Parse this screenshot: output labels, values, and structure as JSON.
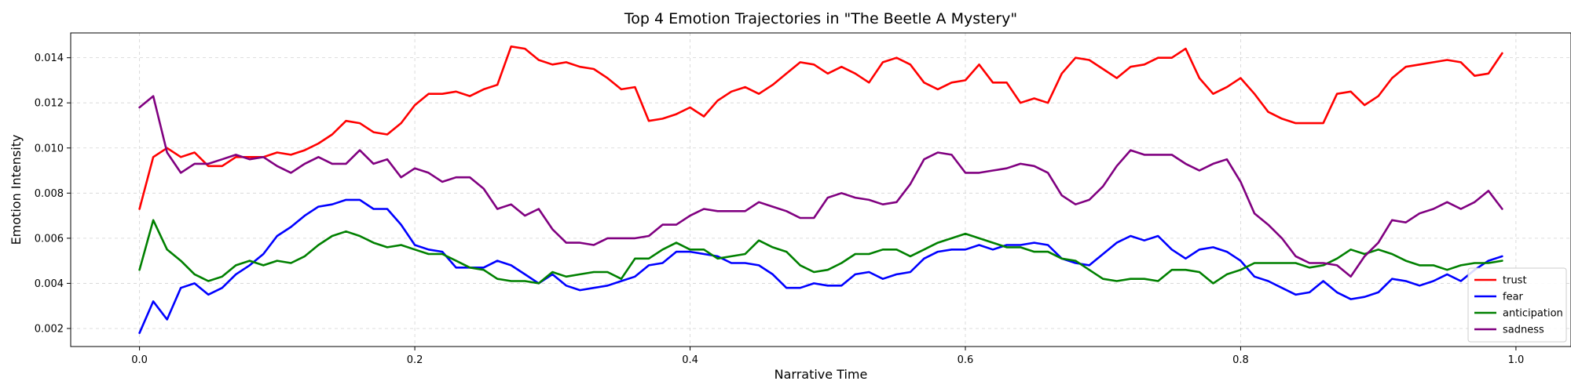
{
  "chart_data": {
    "type": "line",
    "title": "Top 4 Emotion Trajectories in \"The Beetle A Mystery\"",
    "xlabel": "Narrative Time",
    "ylabel": "Emotion Intensity",
    "xlim": [
      -0.05,
      1.04
    ],
    "ylim": [
      0.0012,
      0.0151
    ],
    "xticks": [
      0.0,
      0.2,
      0.4,
      0.6,
      0.8,
      1.0
    ],
    "xtick_labels": [
      "0.0",
      "0.2",
      "0.4",
      "0.6",
      "0.8",
      "1.0"
    ],
    "yticks": [
      0.002,
      0.004,
      0.006,
      0.008,
      0.01,
      0.012,
      0.014
    ],
    "ytick_labels": [
      "0.002",
      "0.004",
      "0.006",
      "0.008",
      "0.010",
      "0.012",
      "0.014"
    ],
    "grid": true,
    "legend_position": "lower-right",
    "x_start": 0.0,
    "x_step": 0.01,
    "series": [
      {
        "name": "trust",
        "color": "#ff0000",
        "values": [
          0.0073,
          0.0096,
          0.01,
          0.0096,
          0.0098,
          0.0092,
          0.0092,
          0.0096,
          0.0096,
          0.0096,
          0.0098,
          0.0097,
          0.0099,
          0.0102,
          0.0106,
          0.0112,
          0.0111,
          0.0107,
          0.0106,
          0.0111,
          0.0119,
          0.0124,
          0.0124,
          0.0125,
          0.0123,
          0.0126,
          0.0128,
          0.0145,
          0.0144,
          0.0139,
          0.0137,
          0.0138,
          0.0136,
          0.0135,
          0.0131,
          0.0126,
          0.0127,
          0.0112,
          0.0113,
          0.0115,
          0.0118,
          0.0114,
          0.0121,
          0.0125,
          0.0127,
          0.0124,
          0.0128,
          0.0133,
          0.0138,
          0.0137,
          0.0133,
          0.0136,
          0.0133,
          0.0129,
          0.0138,
          0.014,
          0.0137,
          0.0129,
          0.0126,
          0.0129,
          0.013,
          0.0137,
          0.0129,
          0.0129,
          0.012,
          0.0122,
          0.012,
          0.0133,
          0.014,
          0.0139,
          0.0135,
          0.0131,
          0.0136,
          0.0137,
          0.014,
          0.014,
          0.0144,
          0.0131,
          0.0124,
          0.0127,
          0.0131,
          0.0124,
          0.0116,
          0.0113,
          0.0111,
          0.0111,
          0.0111,
          0.0124,
          0.0125,
          0.0119,
          0.0123,
          0.0131,
          0.0136,
          0.0137,
          0.0138,
          0.0139,
          0.0138,
          0.0132,
          0.0133,
          0.0142
        ]
      },
      {
        "name": "fear",
        "color": "#0000ff",
        "values": [
          0.0018,
          0.0032,
          0.0024,
          0.0038,
          0.004,
          0.0035,
          0.0038,
          0.0044,
          0.0048,
          0.0053,
          0.0061,
          0.0065,
          0.007,
          0.0074,
          0.0075,
          0.0077,
          0.0077,
          0.0073,
          0.0073,
          0.0066,
          0.0057,
          0.0055,
          0.0054,
          0.0047,
          0.0047,
          0.0047,
          0.005,
          0.0048,
          0.0044,
          0.004,
          0.0044,
          0.0039,
          0.0037,
          0.0038,
          0.0039,
          0.0041,
          0.0043,
          0.0048,
          0.0049,
          0.0054,
          0.0054,
          0.0053,
          0.0052,
          0.0049,
          0.0049,
          0.0048,
          0.0044,
          0.0038,
          0.0038,
          0.004,
          0.0039,
          0.0039,
          0.0044,
          0.0045,
          0.0042,
          0.0044,
          0.0045,
          0.0051,
          0.0054,
          0.0055,
          0.0055,
          0.0057,
          0.0055,
          0.0057,
          0.0057,
          0.0058,
          0.0057,
          0.0051,
          0.0049,
          0.0048,
          0.0053,
          0.0058,
          0.0061,
          0.0059,
          0.0061,
          0.0055,
          0.0051,
          0.0055,
          0.0056,
          0.0054,
          0.005,
          0.0043,
          0.0041,
          0.0038,
          0.0035,
          0.0036,
          0.0041,
          0.0036,
          0.0033,
          0.0034,
          0.0036,
          0.0042,
          0.0041,
          0.0039,
          0.0041,
          0.0044,
          0.0041,
          0.0046,
          0.005,
          0.0052
        ]
      },
      {
        "name": "anticipation",
        "color": "#008000",
        "values": [
          0.0046,
          0.0068,
          0.0055,
          0.005,
          0.0044,
          0.0041,
          0.0043,
          0.0048,
          0.005,
          0.0048,
          0.005,
          0.0049,
          0.0052,
          0.0057,
          0.0061,
          0.0063,
          0.0061,
          0.0058,
          0.0056,
          0.0057,
          0.0055,
          0.0053,
          0.0053,
          0.005,
          0.0047,
          0.0046,
          0.0042,
          0.0041,
          0.0041,
          0.004,
          0.0045,
          0.0043,
          0.0044,
          0.0045,
          0.0045,
          0.0042,
          0.0051,
          0.0051,
          0.0055,
          0.0058,
          0.0055,
          0.0055,
          0.0051,
          0.0052,
          0.0053,
          0.0059,
          0.0056,
          0.0054,
          0.0048,
          0.0045,
          0.0046,
          0.0049,
          0.0053,
          0.0053,
          0.0055,
          0.0055,
          0.0052,
          0.0055,
          0.0058,
          0.006,
          0.0062,
          0.006,
          0.0058,
          0.0056,
          0.0056,
          0.0054,
          0.0054,
          0.0051,
          0.005,
          0.0046,
          0.0042,
          0.0041,
          0.0042,
          0.0042,
          0.0041,
          0.0046,
          0.0046,
          0.0045,
          0.004,
          0.0044,
          0.0046,
          0.0049,
          0.0049,
          0.0049,
          0.0049,
          0.0047,
          0.0048,
          0.0051,
          0.0055,
          0.0053,
          0.0055,
          0.0053,
          0.005,
          0.0048,
          0.0048,
          0.0046,
          0.0048,
          0.0049,
          0.0049,
          0.005
        ]
      },
      {
        "name": "sadness",
        "color": "#800080",
        "values": [
          0.0118,
          0.0123,
          0.0098,
          0.0089,
          0.0093,
          0.0093,
          0.0095,
          0.0097,
          0.0095,
          0.0096,
          0.0092,
          0.0089,
          0.0093,
          0.0096,
          0.0093,
          0.0093,
          0.0099,
          0.0093,
          0.0095,
          0.0087,
          0.0091,
          0.0089,
          0.0085,
          0.0087,
          0.0087,
          0.0082,
          0.0073,
          0.0075,
          0.007,
          0.0073,
          0.0064,
          0.0058,
          0.0058,
          0.0057,
          0.006,
          0.006,
          0.006,
          0.0061,
          0.0066,
          0.0066,
          0.007,
          0.0073,
          0.0072,
          0.0072,
          0.0072,
          0.0076,
          0.0074,
          0.0072,
          0.0069,
          0.0069,
          0.0078,
          0.008,
          0.0078,
          0.0077,
          0.0075,
          0.0076,
          0.0084,
          0.0095,
          0.0098,
          0.0097,
          0.0089,
          0.0089,
          0.009,
          0.0091,
          0.0093,
          0.0092,
          0.0089,
          0.0079,
          0.0075,
          0.0077,
          0.0083,
          0.0092,
          0.0099,
          0.0097,
          0.0097,
          0.0097,
          0.0093,
          0.009,
          0.0093,
          0.0095,
          0.0085,
          0.0071,
          0.0066,
          0.006,
          0.0052,
          0.0049,
          0.0049,
          0.0048,
          0.0043,
          0.0052,
          0.0058,
          0.0068,
          0.0067,
          0.0071,
          0.0073,
          0.0076,
          0.0073,
          0.0076,
          0.0081,
          0.0073
        ]
      }
    ]
  }
}
